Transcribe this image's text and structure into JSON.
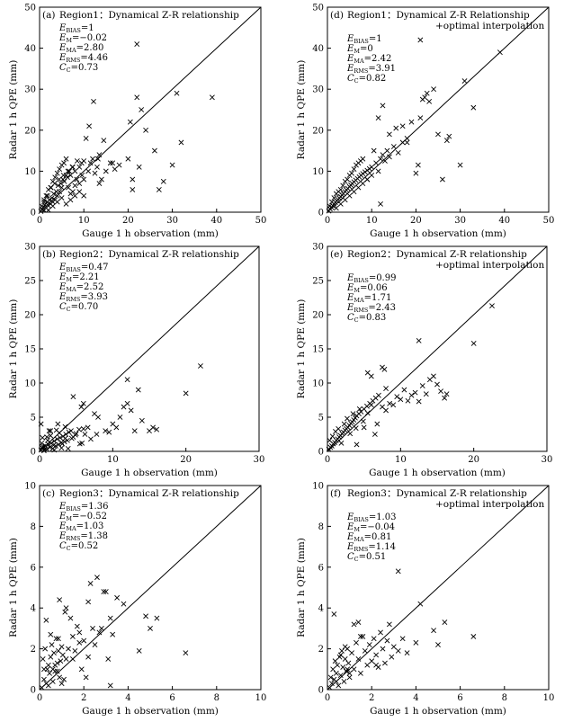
{
  "chart_data": [
    {
      "type": "scatter",
      "panel_label": "(a)",
      "title": "Region1: Dynamical Z-R relationship",
      "title_lines": [
        "Region1：Dynamical Z-R relationship"
      ],
      "xlabel": "Gauge 1 h observation (mm)",
      "ylabel": "Radar 1 h QPE (mm)",
      "xlim": [
        0,
        50
      ],
      "ylim": [
        0,
        50
      ],
      "xticks": [
        0,
        10,
        20,
        30,
        40,
        50
      ],
      "yticks": [
        0,
        10,
        20,
        30,
        40,
        50
      ],
      "stats": [
        {
          "sym": "E",
          "sub": "BIAS",
          "val": "=1"
        },
        {
          "sym": "E",
          "sub": "M",
          "val": "=−0.02"
        },
        {
          "sym": "E",
          "sub": "MA",
          "val": "=2.80"
        },
        {
          "sym": "E",
          "sub": "RMS",
          "val": "=4.46"
        },
        {
          "sym": "C",
          "sub": "C",
          "val": "=0.73"
        }
      ],
      "line_1to1": true,
      "x": [
        0.3,
        0.6,
        0.8,
        1.0,
        1.2,
        1.5,
        1.7,
        2.0,
        2.2,
        2.5,
        2.8,
        3.0,
        3.2,
        3.5,
        3.8,
        4.0,
        4.2,
        4.5,
        4.8,
        5.0,
        5.3,
        5.6,
        6.0,
        6.3,
        6.7,
        7.0,
        7.5,
        8.0,
        8.5,
        9.0,
        9.5,
        10.0,
        0.5,
        1.0,
        1.5,
        2.0,
        2.5,
        3.0,
        3.5,
        4.0,
        4.5,
        5.0,
        5.5,
        6.0,
        6.5,
        7.0,
        7.5,
        8.0,
        9.0,
        10.0,
        2.0,
        3.0,
        4.0,
        5.0,
        6.0,
        7.0,
        8.0,
        9.0,
        1.0,
        1.8,
        2.6,
        3.4,
        4.4,
        5.4,
        6.4,
        7.4,
        8.4,
        9.6,
        11.0,
        11.5,
        12.0,
        12.5,
        13.0,
        13.5,
        14.0,
        15.0,
        16.0,
        17.0,
        18.0,
        10.5,
        11.2,
        12.2,
        13.2,
        14.5,
        16.5,
        20.0,
        20.5,
        21.0,
        21.0,
        22.0,
        22.5,
        23.0,
        24.0,
        26.0,
        27.0,
        28.0,
        30.0,
        31.0,
        32.0,
        39.0,
        22.0,
        13.5,
        10.0
      ],
      "y": [
        0.2,
        0.6,
        1.2,
        0.5,
        1.8,
        1.0,
        2.5,
        1.6,
        3.0,
        2.0,
        3.5,
        2.5,
        4.5,
        3.0,
        5.0,
        4.0,
        6.5,
        5.0,
        7.0,
        6.0,
        8.0,
        7.5,
        9.0,
        8.5,
        10.0,
        9.0,
        11.0,
        10.0,
        12.5,
        11.0,
        12.0,
        12.5,
        1.5,
        3.0,
        4.0,
        5.5,
        6.0,
        7.5,
        8.5,
        9.5,
        10.5,
        11.5,
        12.0,
        13.0,
        6.0,
        4.5,
        5.0,
        6.5,
        7.0,
        8.0,
        0.5,
        1.5,
        2.5,
        3.5,
        2.0,
        3.0,
        4.0,
        5.0,
        2.5,
        4.0,
        6.0,
        7.0,
        8.0,
        9.0,
        10.0,
        11.0,
        8.0,
        9.0,
        10.0,
        12.0,
        13.0,
        9.5,
        11.0,
        7.0,
        8.0,
        10.0,
        12.0,
        10.5,
        11.5,
        18.0,
        21.0,
        27.0,
        13.0,
        17.5,
        12.0,
        13.0,
        22.0,
        8.0,
        5.5,
        28.0,
        11.0,
        25.0,
        20.0,
        15.0,
        5.5,
        7.5,
        11.5,
        29.0,
        17.0,
        28.0,
        41.0,
        14.0,
        4.0
      ]
    },
    {
      "type": "scatter",
      "panel_label": "(d)",
      "title": "Region1: Dynamical Z-R Relationship +optimal interpolation",
      "title_lines": [
        "Region1：Dynamical Z-R Relationship",
        "+optimal interpolation"
      ],
      "xlabel": "Gauge 1 h observation (mm)",
      "ylabel": "Radar 1 h QPE (mm)",
      "xlim": [
        0,
        50
      ],
      "ylim": [
        0,
        50
      ],
      "xticks": [
        0,
        10,
        20,
        30,
        40,
        50
      ],
      "yticks": [
        0,
        10,
        20,
        30,
        40,
        50
      ],
      "stats": [
        {
          "sym": "E",
          "sub": "BIAS",
          "val": "=1"
        },
        {
          "sym": "E",
          "sub": "M",
          "val": "=0"
        },
        {
          "sym": "E",
          "sub": "MA",
          "val": "=2.42"
        },
        {
          "sym": "E",
          "sub": "RMS",
          "val": "=3.91"
        },
        {
          "sym": "C",
          "sub": "C",
          "val": "=0.82"
        }
      ],
      "line_1to1": true,
      "x": [
        0.3,
        0.6,
        0.9,
        1.2,
        1.5,
        1.8,
        2.1,
        2.4,
        2.7,
        3.0,
        3.3,
        3.6,
        4.0,
        4.3,
        4.6,
        5.0,
        5.3,
        5.6,
        6.0,
        6.4,
        6.8,
        7.2,
        7.6,
        8.0,
        8.5,
        9.0,
        9.5,
        10.0,
        0.5,
        1.0,
        1.5,
        2.0,
        2.5,
        3.0,
        3.5,
        4.0,
        4.5,
        5.0,
        5.5,
        6.0,
        6.5,
        7.0,
        7.5,
        8.0,
        9.0,
        10.0,
        2.0,
        3.0,
        4.0,
        5.0,
        6.0,
        7.0,
        8.0,
        9.0,
        11.0,
        11.5,
        12.0,
        12.5,
        13.0,
        13.5,
        14.0,
        15.0,
        16.0,
        17.0,
        18.0,
        10.5,
        11.5,
        12.5,
        14.0,
        15.5,
        17.0,
        18.0,
        19.0,
        20.0,
        20.5,
        21.0,
        21.5,
        22.0,
        22.5,
        23.0,
        24.0,
        25.0,
        26.0,
        27.0,
        27.5,
        30.0,
        31.0,
        33.0,
        39.0,
        21.0,
        12.0
      ],
      "y": [
        0.3,
        0.8,
        1.2,
        1.6,
        2.0,
        2.4,
        2.8,
        3.1,
        3.4,
        3.8,
        4.2,
        4.5,
        5.0,
        5.4,
        5.8,
        6.2,
        6.6,
        7.0,
        7.4,
        7.8,
        8.2,
        8.6,
        9.0,
        9.4,
        9.8,
        10.2,
        10.6,
        11.0,
        1.5,
        2.5,
        3.5,
        4.5,
        5.0,
        5.5,
        6.5,
        7.5,
        8.0,
        9.0,
        9.5,
        10.5,
        11.5,
        12.0,
        12.5,
        13.0,
        8.0,
        9.0,
        1.0,
        2.0,
        3.0,
        4.0,
        5.0,
        6.0,
        7.0,
        8.0,
        12.0,
        10.0,
        13.0,
        14.0,
        12.5,
        15.0,
        13.5,
        16.0,
        14.5,
        17.0,
        18.0,
        15.0,
        23.0,
        26.0,
        19.0,
        20.5,
        21.0,
        17.0,
        22.0,
        9.5,
        11.5,
        23.0,
        27.5,
        28.0,
        29.0,
        27.0,
        30.0,
        19.0,
        8.0,
        17.5,
        18.5,
        11.5,
        32.0,
        25.5,
        39.0,
        42.0,
        2.0
      ]
    },
    {
      "type": "scatter",
      "panel_label": "(b)",
      "title": "Region2: Dynamical Z-R relationship",
      "title_lines": [
        "Region2：Dynamical Z-R relationship"
      ],
      "xlabel": "Gauge 1 h observation (mm)",
      "ylabel": "Radar 1 h QPE (mm)",
      "xlim": [
        0,
        30
      ],
      "ylim": [
        0,
        30
      ],
      "xticks": [
        0,
        10,
        20,
        30
      ],
      "yticks": [
        0,
        5,
        10,
        15,
        20,
        25,
        30
      ],
      "stats": [
        {
          "sym": "E",
          "sub": "BIAS",
          "val": "=0.47"
        },
        {
          "sym": "E",
          "sub": "M",
          "val": "=2.21"
        },
        {
          "sym": "E",
          "sub": "MA",
          "val": "=2.52"
        },
        {
          "sym": "E",
          "sub": "RMS",
          "val": "=3.93"
        },
        {
          "sym": "C",
          "sub": "C",
          "val": "=0.70"
        }
      ],
      "line_1to1": true,
      "x": [
        0.2,
        0.4,
        0.6,
        0.8,
        1.0,
        1.2,
        1.4,
        1.6,
        1.8,
        2.0,
        2.2,
        2.4,
        2.6,
        2.8,
        3.0,
        3.2,
        3.4,
        3.6,
        3.8,
        4.0,
        4.3,
        4.6,
        5.0,
        5.4,
        5.8,
        6.2,
        6.6,
        7.0,
        0.3,
        0.7,
        1.1,
        1.5,
        1.9,
        2.3,
        2.7,
        3.1,
        3.5,
        3.9,
        4.4,
        4.9,
        5.5,
        6.0,
        0.5,
        1.0,
        1.5,
        2.0,
        2.5,
        3.0,
        3.5,
        0.4,
        0.2,
        1.3,
        4.6,
        5.7,
        7.5,
        7.8,
        8.0,
        9.0,
        9.5,
        10.0,
        10.5,
        11.0,
        11.5,
        12.0,
        12.5,
        13.0,
        13.5,
        14.0,
        15.0,
        15.5,
        16.0,
        12.0,
        20.0,
        22.0,
        6.0,
        0.3
      ],
      "y": [
        0.2,
        0.5,
        0.1,
        0.8,
        0.3,
        1.0,
        0.6,
        1.2,
        0.4,
        1.5,
        0.8,
        1.8,
        1.0,
        2.0,
        0.5,
        2.2,
        1.4,
        2.5,
        1.6,
        2.8,
        3.0,
        2.1,
        2.6,
        3.2,
        1.2,
        2.5,
        3.5,
        1.8,
        1.2,
        0.3,
        1.6,
        2.3,
        0.9,
        3.1,
        2.7,
        1.1,
        3.6,
        0.4,
        1.9,
        2.4,
        1.1,
        3.3,
        0.7,
        2.1,
        3.0,
        0.2,
        4.0,
        1.3,
        1.9,
        2.0,
        4.0,
        3.0,
        8.0,
        6.5,
        5.5,
        2.5,
        5.0,
        3.0,
        2.8,
        4.0,
        3.5,
        5.0,
        6.5,
        7.0,
        6.0,
        3.0,
        9.0,
        4.5,
        3.0,
        3.5,
        3.2,
        10.5,
        8.5,
        12.5,
        7.0,
        0.6
      ]
    },
    {
      "type": "scatter",
      "panel_label": "(e)",
      "title": "Region2: Dynamical Z-R relationship +optimal interpolation",
      "title_lines": [
        "Region2：Dynamical Z-R relationship",
        "+optimal interpolation"
      ],
      "xlabel": "Gauge 1 h observation (mm)",
      "ylabel": "Radar 1 h QPE (mm)",
      "xlim": [
        0,
        30
      ],
      "ylim": [
        0,
        30
      ],
      "xticks": [
        0,
        10,
        20,
        30
      ],
      "yticks": [
        0,
        5,
        10,
        15,
        20,
        25,
        30
      ],
      "stats": [
        {
          "sym": "E",
          "sub": "BIAS",
          "val": "=0.99"
        },
        {
          "sym": "E",
          "sub": "M",
          "val": "=0.06"
        },
        {
          "sym": "E",
          "sub": "MA",
          "val": "=1.71"
        },
        {
          "sym": "E",
          "sub": "RMS",
          "val": "=2.43"
        },
        {
          "sym": "C",
          "sub": "C",
          "val": "=0.83"
        }
      ],
      "line_1to1": true,
      "x": [
        0.2,
        0.4,
        0.6,
        0.8,
        1.0,
        1.2,
        1.4,
        1.6,
        1.8,
        2.0,
        2.2,
        2.4,
        2.6,
        2.8,
        3.0,
        3.2,
        3.4,
        3.6,
        3.8,
        4.0,
        4.3,
        4.6,
        5.0,
        5.4,
        5.8,
        6.2,
        6.6,
        7.0,
        0.3,
        0.7,
        1.1,
        1.5,
        1.9,
        2.3,
        2.7,
        3.1,
        3.5,
        3.9,
        4.4,
        4.9,
        5.5,
        6.0,
        7.5,
        8.0,
        8.5,
        9.0,
        9.5,
        10.0,
        10.5,
        11.0,
        11.5,
        12.0,
        12.5,
        13.0,
        13.5,
        14.0,
        14.5,
        15.0,
        15.5,
        16.0,
        16.3,
        12.5,
        20.0,
        22.5,
        6.5,
        7.5,
        7.8,
        5.5,
        6.0,
        8.0,
        4.0,
        5.0,
        6.8
      ],
      "y": [
        0.3,
        0.6,
        0.8,
        1.1,
        1.3,
        1.6,
        1.8,
        2.1,
        2.3,
        2.6,
        2.8,
        3.1,
        3.3,
        3.5,
        3.8,
        4.1,
        4.3,
        4.6,
        4.9,
        5.2,
        5.5,
        5.8,
        6.2,
        6.6,
        7.0,
        7.4,
        7.8,
        8.2,
        1.6,
        2.2,
        2.9,
        3.3,
        1.2,
        4.0,
        4.8,
        2.6,
        5.5,
        3.4,
        6.2,
        4.4,
        5.6,
        6.8,
        6.5,
        6.0,
        7.0,
        6.8,
        8.0,
        7.6,
        9.0,
        7.4,
        8.2,
        8.6,
        7.3,
        9.6,
        8.4,
        10.5,
        11.0,
        9.8,
        8.8,
        7.8,
        8.4,
        16.2,
        15.8,
        21.3,
        2.5,
        12.3,
        12.0,
        11.5,
        11.0,
        9.2,
        1.0,
        3.5,
        4.0
      ]
    },
    {
      "type": "scatter",
      "panel_label": "(c)",
      "title": "Region3: Dynamical Z-R relationship",
      "title_lines": [
        "Region3：Dynamical Z-R relationship"
      ],
      "xlabel": "Gauge 1 h observation (mm)",
      "ylabel": "Radar 1 h QPE (mm)",
      "xlim": [
        0,
        10
      ],
      "ylim": [
        0,
        10
      ],
      "xticks": [
        0,
        2,
        4,
        6,
        8,
        10
      ],
      "yticks": [
        0,
        2,
        4,
        6,
        8,
        10
      ],
      "stats": [
        {
          "sym": "E",
          "sub": "BIAS",
          "val": "=1.36"
        },
        {
          "sym": "E",
          "sub": "M",
          "val": "=−0.52"
        },
        {
          "sym": "E",
          "sub": "MA",
          "val": "=1.03"
        },
        {
          "sym": "E",
          "sub": "RMS",
          "val": "=1.38"
        },
        {
          "sym": "C",
          "sub": "C",
          "val": "=0.52"
        }
      ],
      "line_1to1": true,
      "x": [
        0.1,
        0.15,
        0.2,
        0.25,
        0.3,
        0.35,
        0.4,
        0.45,
        0.5,
        0.55,
        0.6,
        0.65,
        0.7,
        0.75,
        0.8,
        0.85,
        0.9,
        0.95,
        1.0,
        1.05,
        1.1,
        1.15,
        1.2,
        1.3,
        1.4,
        1.5,
        1.6,
        1.7,
        1.8,
        1.9,
        2.0,
        2.1,
        2.2,
        2.3,
        2.4,
        2.5,
        2.6,
        2.7,
        2.8,
        2.9,
        3.0,
        3.1,
        3.2,
        3.3,
        3.5,
        3.8,
        4.5,
        4.8,
        5.0,
        5.3,
        6.6,
        0.3,
        0.5,
        0.7,
        0.9,
        1.2,
        1.5,
        1.8,
        0.4,
        0.6,
        0.8,
        1.0,
        0.2,
        2.2,
        3.2,
        0.85
      ],
      "y": [
        0.1,
        1.5,
        0.5,
        2.0,
        0.3,
        1.0,
        1.2,
        0.8,
        1.6,
        2.2,
        0.4,
        1.8,
        0.9,
        2.5,
        1.3,
        1.9,
        0.6,
        1.4,
        2.1,
        1.7,
        0.5,
        3.8,
        1.5,
        2.0,
        3.5,
        2.6,
        1.9,
        3.1,
        2.3,
        1.0,
        2.4,
        0.6,
        4.3,
        5.2,
        3.0,
        2.2,
        5.5,
        2.8,
        3.0,
        4.8,
        4.8,
        1.5,
        3.5,
        2.7,
        4.5,
        4.2,
        1.9,
        3.6,
        3.0,
        3.5,
        1.8,
        3.4,
        2.7,
        1.2,
        4.4,
        4.0,
        1.5,
        2.8,
        0.2,
        1.0,
        0.9,
        0.3,
        1.0,
        1.6,
        0.2,
        2.5
      ]
    },
    {
      "type": "scatter",
      "panel_label": "(f)",
      "title": "Region3: Dynamical Z-R relationship +optimal interpolation",
      "title_lines": [
        "Region3：Dynamical Z-R relationship",
        "+optimal interpolation"
      ],
      "xlabel": "Gauge 1 h observation (mm)",
      "ylabel": "Radar 1 h QPE (mm)",
      "xlim": [
        0,
        10
      ],
      "ylim": [
        0,
        10
      ],
      "xticks": [
        0,
        2,
        4,
        6,
        8,
        10
      ],
      "yticks": [
        0,
        2,
        4,
        6,
        8,
        10
      ],
      "stats": [
        {
          "sym": "E",
          "sub": "BIAS",
          "val": "=1.03"
        },
        {
          "sym": "E",
          "sub": "M",
          "val": "=−0.04"
        },
        {
          "sym": "E",
          "sub": "MA",
          "val": "=0.81"
        },
        {
          "sym": "E",
          "sub": "RMS",
          "val": "=1.14"
        },
        {
          "sym": "C",
          "sub": "C",
          "val": "=0.51"
        }
      ],
      "line_1to1": true,
      "x": [
        0.1,
        0.15,
        0.2,
        0.25,
        0.3,
        0.35,
        0.4,
        0.45,
        0.5,
        0.55,
        0.6,
        0.65,
        0.7,
        0.75,
        0.8,
        0.85,
        0.9,
        0.95,
        1.0,
        1.1,
        1.2,
        1.3,
        1.4,
        1.5,
        1.6,
        1.7,
        1.8,
        1.9,
        2.0,
        2.1,
        2.2,
        2.3,
        2.4,
        2.5,
        2.6,
        2.7,
        2.8,
        2.9,
        3.0,
        3.2,
        3.4,
        3.6,
        4.0,
        4.2,
        4.8,
        5.0,
        5.3,
        6.6,
        0.3,
        0.6,
        0.9,
        1.2,
        1.5,
        0.4,
        0.8,
        2.2,
        3.2,
        1.0,
        1.4
      ],
      "y": [
        0.1,
        0.6,
        0.3,
        1.0,
        0.5,
        1.4,
        0.8,
        1.2,
        0.2,
        1.6,
        0.7,
        1.9,
        1.1,
        0.4,
        1.5,
        0.9,
        2.0,
        1.3,
        0.6,
        1.8,
        1.0,
        2.3,
        1.5,
        0.8,
        2.6,
        1.9,
        1.2,
        2.2,
        1.4,
        2.5,
        1.7,
        1.1,
        2.8,
        2.0,
        1.3,
        2.4,
        3.2,
        1.6,
        2.1,
        5.8,
        2.5,
        1.8,
        2.3,
        4.2,
        2.9,
        2.2,
        3.3,
        2.6,
        3.7,
        1.7,
        1.0,
        3.2,
        2.6,
        0.4,
        2.1,
        1.2,
        1.9,
        0.8,
        3.3
      ]
    }
  ]
}
